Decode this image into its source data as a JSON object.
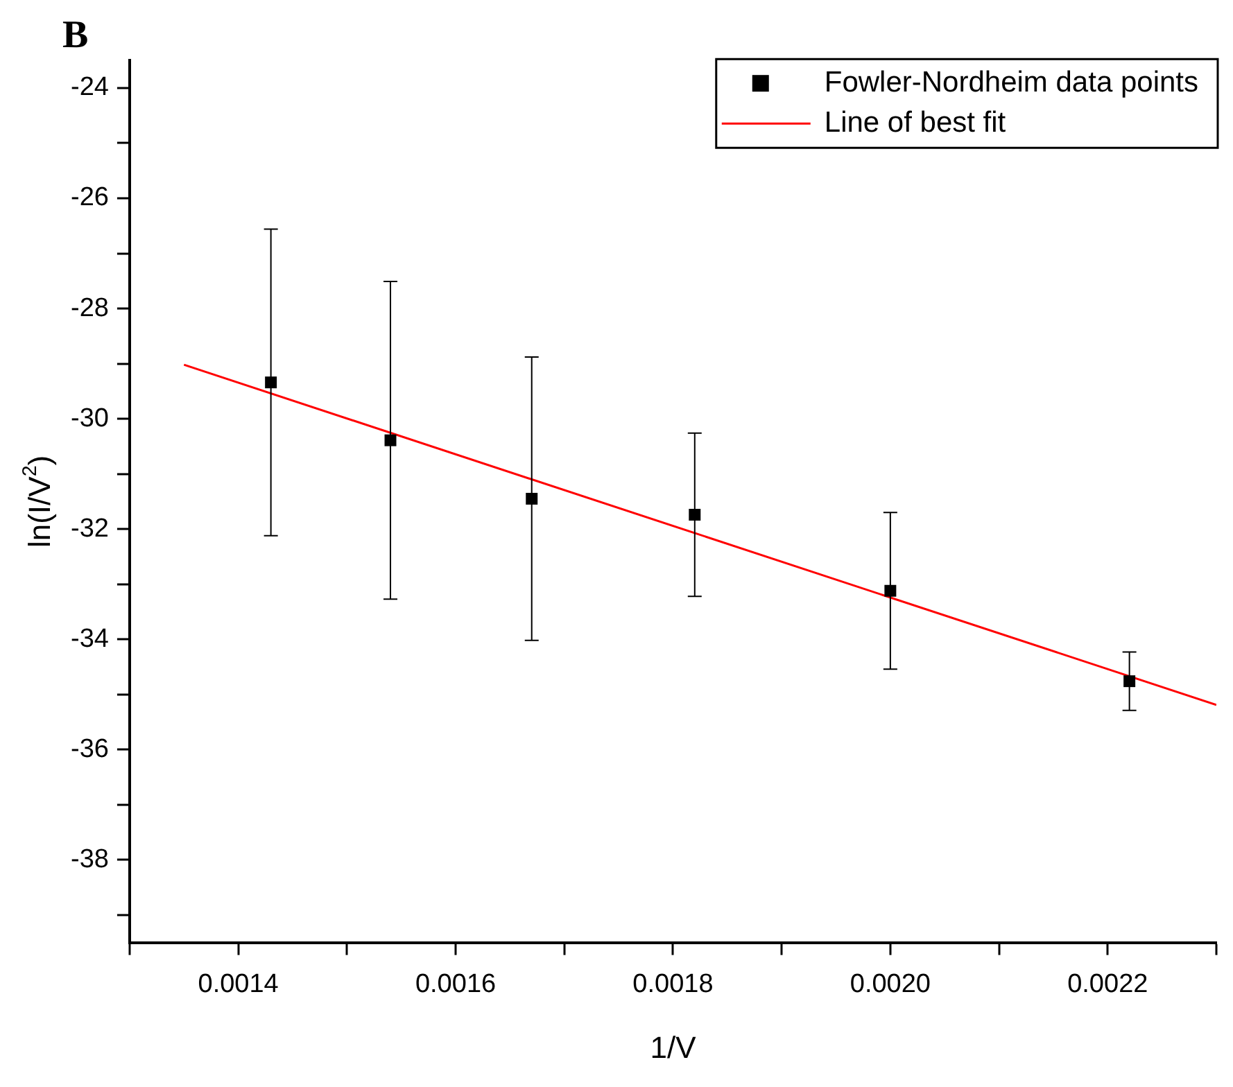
{
  "chart_data": {
    "type": "scatter",
    "title": "B",
    "xlabel": "1/V",
    "ylabel": "ln(I/V$^{2}$)",
    "xlim": [
      0.0013,
      0.0023
    ],
    "xticks": [
      {
        "value": 0.0013,
        "label": null
      },
      0.0014,
      {
        "value": 0.0015,
        "label": null
      },
      0.0016,
      {
        "value": 0.0017,
        "label": null
      },
      0.0018,
      {
        "value": 0.0019,
        "label": null
      },
      {
        "value": 0.002,
        "label": "0.0020"
      },
      {
        "value": 0.0021,
        "label": null
      },
      0.0022,
      {
        "value": 0.0023,
        "label": null
      }
    ],
    "ylim": [
      -39.5,
      -23.5
    ],
    "yticks": [
      {
        "value": -39,
        "label": null
      },
      -38,
      {
        "value": -37,
        "label": null
      },
      -36,
      {
        "value": -35,
        "label": null
      },
      -34,
      {
        "value": -33,
        "label": null
      },
      -32,
      {
        "value": -31,
        "label": null
      },
      -30,
      {
        "value": -29,
        "label": null
      },
      -28,
      {
        "value": -27,
        "label": null
      },
      -26,
      {
        "value": -25,
        "label": null
      },
      -24
    ],
    "grid": false,
    "legend": "top right",
    "series": [
      {
        "name": "Fowler-Nordheim data points",
        "type": "scatter",
        "color": "#000000",
        "marker": "square",
        "x": [
          0.00143,
          0.00154,
          0.00167,
          0.00182,
          0.002,
          0.00222
        ],
        "values": [
          -29.34,
          -30.39,
          -31.45,
          -31.74,
          -33.12,
          -34.76
        ],
        "errors": [
          2.78,
          2.88,
          2.57,
          1.48,
          1.42,
          0.53
        ]
      },
      {
        "name": "Line of best fit",
        "type": "line",
        "color": "#ff0000",
        "marker": "none",
        "line_style": "solid",
        "x": [
          0.00135,
          0.0023
        ],
        "values": [
          -29.02,
          -35.19
        ]
      }
    ]
  }
}
